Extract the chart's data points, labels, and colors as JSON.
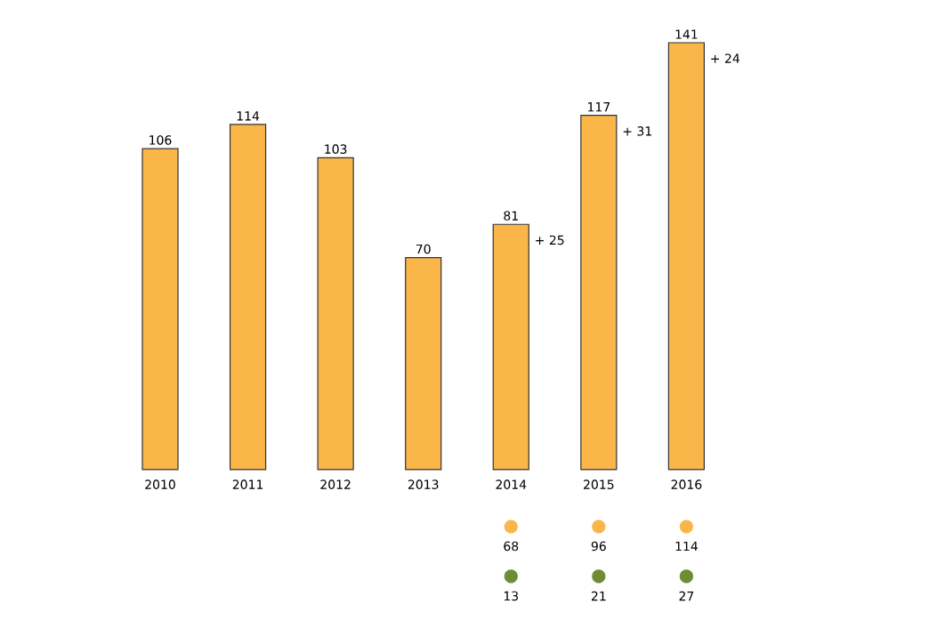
{
  "chart_data": {
    "type": "bar",
    "categories": [
      "2010",
      "2011",
      "2012",
      "2013",
      "2014",
      "2015",
      "2016"
    ],
    "series": [
      {
        "color": "#fbb64a",
        "values": [
          106,
          114,
          103,
          70,
          81,
          117,
          141
        ]
      }
    ],
    "data_labels": true,
    "annotations": [
      {
        "text": "+ 25",
        "x": "2014",
        "y": 81
      },
      {
        "text": "+ 31",
        "x": "2015",
        "y": 117
      },
      {
        "text": "+ 24",
        "x": "2016",
        "y": 141
      },
      "68",
      "96",
      "114",
      "13",
      "21",
      "27"
    ]
  }
}
